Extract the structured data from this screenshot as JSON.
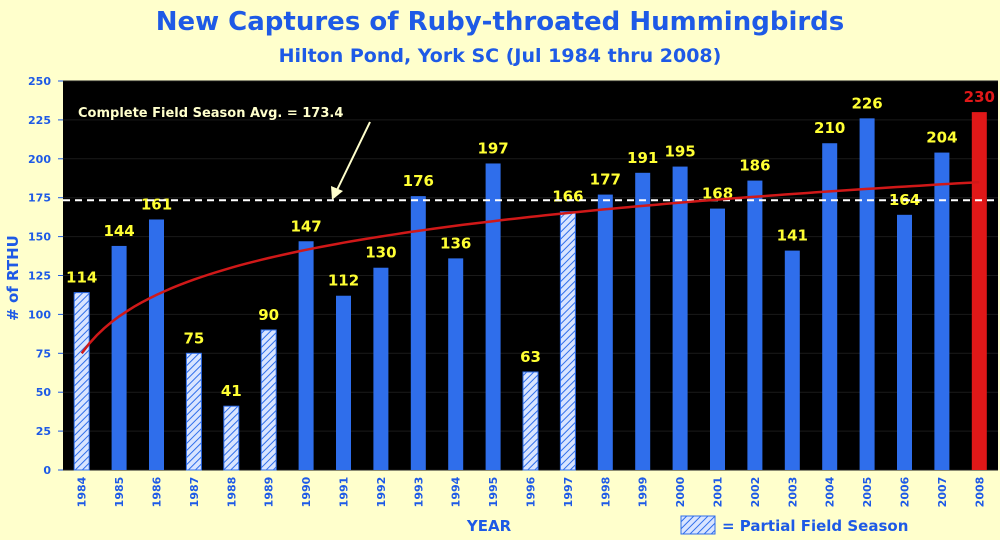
{
  "chart_data": {
    "type": "bar",
    "title": "New Captures of Ruby-throated Hummingbirds",
    "subtitle": "Hilton Pond, York SC (Jul 1984 thru 2008)",
    "xlabel": "YEAR",
    "ylabel": "# of RTHU",
    "ylim": [
      0,
      250
    ],
    "yticks": [
      0,
      25,
      50,
      75,
      100,
      125,
      150,
      175,
      200,
      225,
      250
    ],
    "categories": [
      "1984",
      "1985",
      "1986",
      "1987",
      "1988",
      "1989",
      "1990",
      "1991",
      "1992",
      "1993",
      "1994",
      "1995",
      "1996",
      "1997",
      "1998",
      "1999",
      "2000",
      "2001",
      "2002",
      "2003",
      "2004",
      "2005",
      "2006",
      "2007",
      "2008"
    ],
    "values": [
      114,
      144,
      161,
      75,
      41,
      90,
      147,
      112,
      130,
      176,
      136,
      197,
      63,
      166,
      177,
      191,
      195,
      168,
      186,
      141,
      210,
      226,
      164,
      204,
      230
    ],
    "partial_season": [
      true,
      false,
      false,
      true,
      true,
      true,
      false,
      false,
      false,
      false,
      false,
      false,
      true,
      true,
      false,
      false,
      false,
      false,
      false,
      false,
      false,
      false,
      false,
      false,
      false
    ],
    "highlight": [
      false,
      false,
      false,
      false,
      false,
      false,
      false,
      false,
      false,
      false,
      false,
      false,
      false,
      false,
      false,
      false,
      false,
      false,
      false,
      false,
      false,
      false,
      false,
      false,
      true
    ],
    "reference_line": {
      "value": 173.4,
      "label": "Complete Field Season Avg. = 173.4"
    },
    "trend": {
      "start": 75,
      "end": 185
    },
    "legend": {
      "label": "= Partial Field Season",
      "position": "bottom-right"
    },
    "colors": {
      "background": "#FFFFCC",
      "plot_bg": "#000000",
      "bar": "#2F6EEB",
      "highlight_bar": "#E01818",
      "data_label": "#FFFF33",
      "highlight_label": "#E01818",
      "trend": "#D01818",
      "text": "#1E5AE6",
      "annotation": "#FFFFCC"
    }
  }
}
